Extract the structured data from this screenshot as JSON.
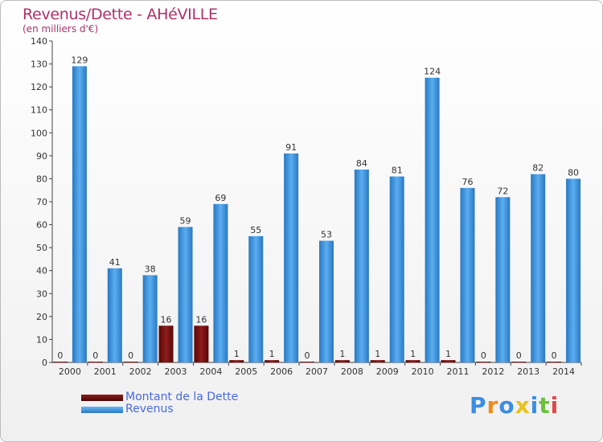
{
  "header": {
    "title": "Revenus/Dette - AHéVILLE",
    "subtitle": "(en milliers d'€)"
  },
  "legend": {
    "items": [
      {
        "label": "Montant de la Dette",
        "color": "#6b0a0a"
      },
      {
        "label": "Revenus",
        "color": "#3d94dc"
      }
    ]
  },
  "logo": {
    "text": "Proxiti"
  },
  "chart_data": {
    "type": "bar",
    "categories": [
      "2000",
      "2001",
      "2002",
      "2003",
      "2004",
      "2005",
      "2006",
      "2007",
      "2008",
      "2009",
      "2010",
      "2011",
      "2012",
      "2013",
      "2014"
    ],
    "series": [
      {
        "name": "Montant de la Dette",
        "color": "#6b0a0a",
        "values": [
          0,
          0,
          0,
          16,
          16,
          1,
          1,
          0,
          1,
          1,
          1,
          1,
          0,
          0,
          0
        ]
      },
      {
        "name": "Revenus",
        "color": "#3d94dc",
        "values": [
          129,
          41,
          38,
          59,
          69,
          55,
          91,
          53,
          84,
          81,
          124,
          76,
          72,
          82,
          80
        ]
      }
    ],
    "title": "Revenus/Dette - AHéVILLE",
    "ylabel": "(en milliers d'€)",
    "ylim": [
      0,
      140
    ],
    "yticks": [
      0,
      10,
      20,
      30,
      40,
      50,
      60,
      70,
      80,
      90,
      100,
      110,
      120,
      130,
      140
    ],
    "grid": false,
    "legend": "bottom-left"
  }
}
